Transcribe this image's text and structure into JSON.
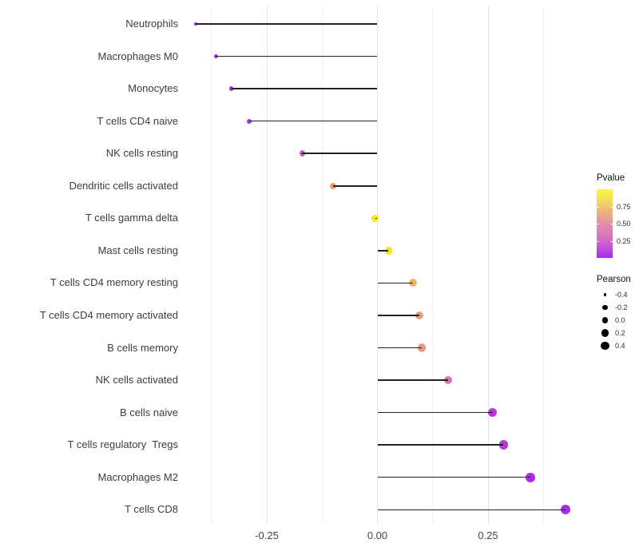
{
  "figure": {
    "background": "#ffffff"
  },
  "chart_data": {
    "type": "scatter",
    "variant": "lollipop",
    "orientation": "horizontal",
    "title": "",
    "xlabel": "",
    "ylabel": "",
    "grid": "on",
    "x_axis": {
      "tick_labels": [
        "-0.25",
        "0.00",
        "0.25"
      ],
      "tick_values": [
        -0.25,
        0.0,
        0.25
      ],
      "minor_gridlines": [
        -0.375,
        -0.125,
        0.125,
        0.375
      ],
      "range": [
        -0.452,
        0.468
      ]
    },
    "categories": [
      "Neutrophils",
      "Macrophages M0",
      "Monocytes",
      "T cells CD4 naive",
      "NK cells resting",
      "Dendritic cells activated",
      "T cells gamma delta",
      "Mast cells resting",
      "T cells CD4 memory resting",
      "T cells CD4 memory activated",
      "B cells memory",
      "NK cells activated",
      "B cells naive",
      "T cells regulatory  Tregs",
      "Macrophages M2",
      "T cells CD8"
    ],
    "series": [
      {
        "name": "Pearson",
        "values": [
          -0.41,
          -0.365,
          -0.33,
          -0.29,
          -0.17,
          -0.1,
          -0.005,
          0.025,
          0.08,
          0.095,
          0.1,
          0.16,
          0.26,
          0.285,
          0.345,
          0.425
        ]
      }
    ],
    "point_colors": [
      "#A028E8",
      "#A22BE6",
      "#A42DE1",
      "#A936E0",
      "#C560C4",
      "#E99C6F",
      "#FBEC0A",
      "#F6E52E",
      "#EDB464",
      "#E9A17E",
      "#E49B86",
      "#D578AE",
      "#BA38D8",
      "#B438DC",
      "#AF2CE2",
      "#AA28E8"
    ],
    "color_legend": {
      "title": "Pvalue",
      "tick_labels": [
        "0.75",
        "0.50",
        "0.25"
      ],
      "tick_values": [
        0.75,
        0.5,
        0.25
      ],
      "range": [
        0,
        1
      ],
      "gradient_top_to_bottom": [
        "#FBF93C",
        "#F4D95E",
        "#EDB27F",
        "#E28FA6",
        "#D877BC",
        "#C658D8",
        "#A727F0"
      ]
    },
    "size_legend": {
      "title": "Pearson",
      "labels": [
        "-0.4",
        "-0.2",
        "0.0",
        "0.2",
        "0.4"
      ],
      "values": [
        -0.4,
        -0.2,
        0.0,
        0.2,
        0.4
      ]
    }
  }
}
